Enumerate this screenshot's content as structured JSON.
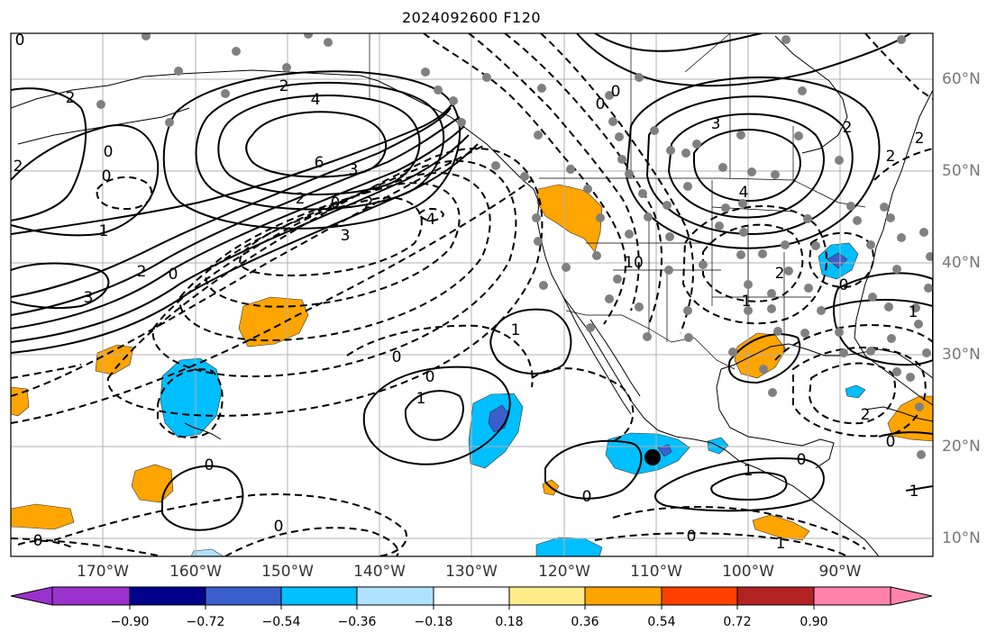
{
  "title": "2024092600 F120",
  "lon_labels": [
    "170°W",
    "160°W",
    "150°W",
    "140°W",
    "130°W",
    "120°W",
    "110°W",
    "100°W",
    "90°W"
  ],
  "lat_labels": [
    "60°N",
    "50°N",
    "40°N",
    "30°N",
    "20°N",
    "10°N"
  ],
  "colorbar": {
    "ticks": [
      "−0.90",
      "−0.72",
      "−0.54",
      "−0.36",
      "−0.18",
      "0.18",
      "0.36",
      "0.54",
      "0.72",
      "0.90"
    ],
    "colors": [
      "#9932CC",
      "#00008B",
      "#3A5FCD",
      "#00BFFF",
      "#B0E2FF",
      "#FFFFFF",
      "#FFEC8B",
      "#FFA500",
      "#FF4000",
      "#B22222",
      "#FF82AB"
    ]
  },
  "contour_labels": {
    "c1": "0",
    "c2": "2",
    "c3": "4",
    "c4": "6",
    "c5": "3",
    "c6": "2",
    "c7": "0",
    "c8": "0",
    "c9": "2",
    "c10": "1",
    "c11": "2",
    "c12": "0",
    "c13": "3",
    "c14": "0",
    "c15": "2",
    "c16": "2",
    "c17": "3",
    "c18": "4",
    "c19": "0",
    "c20": "1",
    "c21": "0",
    "c22": "1",
    "c23": "0",
    "c24": "0",
    "c25": "0",
    "c26": "0",
    "c27": "1",
    "c28": "0",
    "c29": "0",
    "c30": "1",
    "c31": "1",
    "c32": "0",
    "c33": "3",
    "c34": "4",
    "c35": "2",
    "c36": "2",
    "c37": "2",
    "c38": "0",
    "c39": "2",
    "c40": "1",
    "c41": "1",
    "c42": "2",
    "c43": "10",
    "c44": "0",
    "c45": "0"
  }
}
